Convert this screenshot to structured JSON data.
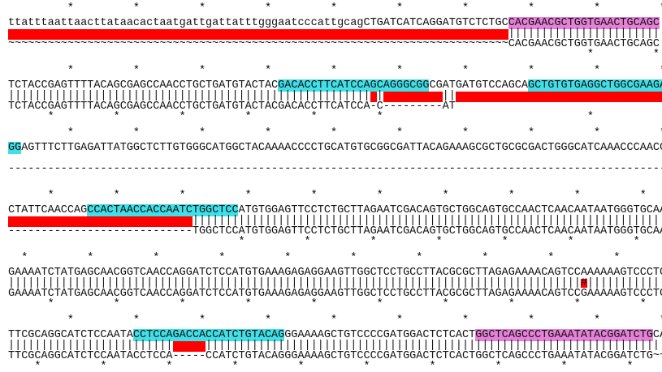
{
  "alignment": {
    "highlight_text_color": "#111111",
    "gap_color": "#ff0000",
    "blocks": [
      {
        "stars_top": "         *         *         *         *         *         *         *         *         *         *",
        "top": "ttatttaattaacttataacactaatgattgattatttgggaatcccattgcagCTGATCATCAGGATGTCTCTGCCACGAACGCTGGTGAACTGCAGC",
        "highlights": [
          {
            "start": 76,
            "end": 98,
            "color": "#e680d8"
          }
        ],
        "match": "                                                                            |||||||||||||||||||||||",
        "bottom": "~~~~~~~~~~~~~~~~~~~~~~~~~~~~~~~~~~~~~~~~~~~~~~~~~~~~~~~~~~~~~~~~~~~~~~~~~~~~CACGAACGCTGGTGAACTGCAGC",
        "stars_bottom": "                                                                                        *         *"
      },
      {
        "stars_top": "         *         *         *         *         *         *         *         *         *         *",
        "top": "TCTACCGAGTTTTACAGCGAGCCAACCTGCTGATGTACTACGACACCTTCATCCAGCAGGGCGGCGATGATGTCCAGCAGCTGTGTGAGGCTGGCGAAGA",
        "highlights": [
          {
            "start": 41,
            "end": 63,
            "color": "#40e0e8"
          },
          {
            "start": 79,
            "end": 99,
            "color": "#40e0e8"
          }
        ],
        "match": "||||||||||||||||||||||||||||||||||||||||||||||||||||||| |         ||                                ",
        "bottom": "TCTACCGAGTTTTACAGCGAGCCAACCTGCTGATGTACTACGACACCTTCATCCA-C---------AT",
        "stars_bottom": "      *         *         *         *         *         *                               *"
      },
      {
        "stars_top": "         *         *         *         *         *         *         *         *         *         *",
        "top": "GGAGTTTCTTGAGATTATGGCTCTTGTGGGCATGGCTACAAAACCCCTGCATGTGCGGCGATTACAGAAAGCGCTGCGCGACTGGGCATCAAACCCAACG",
        "highlights": [
          {
            "start": 0,
            "end": 1,
            "color": "#40e0e8"
          }
        ],
        "bottom": "----------------------------------------------------------------------------------------------------"
      },
      {
        "stars_top": "      *         *         *         *         *         *         *         *         *         *",
        "top": "CTATTCAACCAGCCACTAACCACCAATCTGGCTCCATGTGGAGTTCCTCTGCTTAGAATCGACAGTGCTGGCAGTGCCAACTCAACAATAATGGGTGCAA",
        "highlights": [
          {
            "start": 12,
            "end": 34,
            "color": "#40e0e8"
          }
        ],
        "match": "                            ||||||||||||||||||||||||||||||||||||||||||||||||||||||||||||||||||||||||",
        "bottom": "----------------------------TGGCTCCATGTGGAGTTCCTCTGCTTAGAATCGACAGTGCTGGCAGTGCCAACTCAACAATAATGGGTGCAA",
        "stars_bottom": "                                   *         *         *         *         *         *         *"
      },
      {
        "stars_top": "  *         *         *         *         *         *         *         *         *         *",
        "top": "GAAAATCTATGAGCAACGGTCAACCAGGATCTCCATGTGAAAGAGAGGAAGTTGGCTCCTGCCTTACGCGCTTAGAGAAAACAGTCCAAAAAAGTCCCTG",
        "match": "|||||||||||||||||||||||||||||||||||||||||||||||||||||||||||||||||||||||||||||||||||||||#||||||||||||",
        "bottom": "GAAAATCTATGAGCAACGGTCAACCAGGATCTCCATGTGAAAGAGAGGAAGTTGGCTCCTGCCTTACGCGCTTAGAGAAAACAGTCCGAAAAAGTCCCTG",
        "stars_bottom": "      *         *         *         *         *         *         *         *         *         *"
      },
      {
        "stars_top": "         *         *         *         *         *         *         *         *         *         *",
        "top": "TTCGCAGGCATCTCCAATACCTCCAGACCACCATCTGTACAGGGAAAAGCTGTCCCCGATGGACTCTCACTGGCTCAGCCCTGAAATATACGGATCTGCA",
        "highlights": [
          {
            "start": 19,
            "end": 41,
            "color": "#40e0e8"
          },
          {
            "start": 71,
            "end": 97,
            "color": "#e680d8"
          }
        ],
        "match": "|||||||||||||||||||||||||     ||||||||||||||||||||||||||||||||||||||||||||||||||||||||||||||||||||||",
        "bottom": "TTCGCAGGCATCTCCAATACCTCCA-----CCATCTGTACAGGGAAAAGCTGTCCCCGATGGACTCTCACTGGCTCAGCCCTGAAATATACGGATCTG~~",
        "stars_bottom": "    *         *         *         *         *         *         *         *         *         *"
      }
    ]
  }
}
